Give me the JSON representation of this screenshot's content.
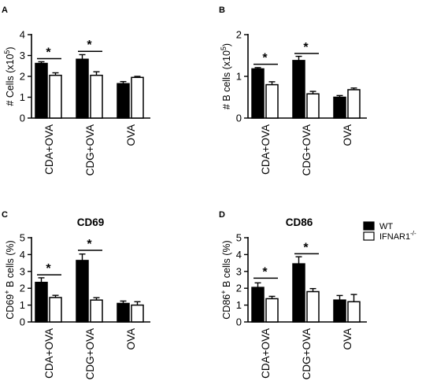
{
  "legend": {
    "wt": "WT",
    "ifnar_base": "IFNAR1",
    "ifnar_sup": "-/-"
  },
  "colors": {
    "wt": "#000000",
    "ifnar": "#ffffff",
    "stroke": "#000000"
  },
  "chart_data": [
    {
      "type": "bar",
      "letter": "A",
      "title": "",
      "ylabel_base": "# Cells (x10",
      "ylabel_sup": "5",
      "ylabel_end": ")",
      "ylim": [
        0,
        4
      ],
      "yticks": [
        "0",
        "1",
        "2",
        "3",
        "4"
      ],
      "categories": [
        "CDA+OVA",
        "CDG+OVA",
        "OVA"
      ],
      "series": [
        {
          "name": "WT",
          "values": [
            2.62,
            2.82,
            1.65
          ],
          "errors": [
            0.08,
            0.22,
            0.1
          ]
        },
        {
          "name": "IFNAR1-/-",
          "values": [
            2.05,
            2.05,
            1.95
          ],
          "errors": [
            0.12,
            0.17,
            0.05
          ]
        }
      ],
      "significance": [
        {
          "category": 0,
          "label": "*",
          "y": 2.85
        },
        {
          "category": 1,
          "label": "*",
          "y": 3.2
        }
      ]
    },
    {
      "type": "bar",
      "letter": "B",
      "title": "",
      "ylabel_base": "# B cells (x10",
      "ylabel_sup": "5",
      "ylabel_end": ")",
      "ylim": [
        0,
        2
      ],
      "yticks": [
        "0",
        "1",
        "2"
      ],
      "categories": [
        "CDA+OVA",
        "CDG+OVA",
        "OVA"
      ],
      "series": [
        {
          "name": "WT",
          "values": [
            1.18,
            1.38,
            0.5
          ],
          "errors": [
            0.03,
            0.1,
            0.04
          ]
        },
        {
          "name": "IFNAR1-/-",
          "values": [
            0.8,
            0.58,
            0.68
          ],
          "errors": [
            0.07,
            0.06,
            0.04
          ]
        }
      ],
      "significance": [
        {
          "category": 0,
          "label": "*",
          "y": 1.29
        },
        {
          "category": 1,
          "label": "*",
          "y": 1.55
        }
      ]
    },
    {
      "type": "bar",
      "letter": "C",
      "title": "CD69",
      "ylabel_base": "CD69",
      "ylabel_sup": "+",
      "ylabel_end": " B cells (%)",
      "ylim": [
        0,
        5
      ],
      "yticks": [
        "0",
        "1",
        "2",
        "3",
        "4",
        "5"
      ],
      "categories": [
        "CDA+OVA",
        "CDG+OVA",
        "OVA"
      ],
      "series": [
        {
          "name": "WT",
          "values": [
            2.35,
            3.65,
            1.1
          ],
          "errors": [
            0.27,
            0.38,
            0.14
          ]
        },
        {
          "name": "IFNAR1-/-",
          "values": [
            1.45,
            1.3,
            1.0
          ],
          "errors": [
            0.13,
            0.14,
            0.2
          ]
        }
      ],
      "significance": [
        {
          "category": 0,
          "label": "*",
          "y": 2.8
        },
        {
          "category": 1,
          "label": "*",
          "y": 4.25
        }
      ]
    },
    {
      "type": "bar",
      "letter": "D",
      "title": "CD86",
      "ylabel_base": "CD86",
      "ylabel_sup": "+",
      "ylabel_end": " B cells (%)",
      "ylim": [
        0,
        5
      ],
      "yticks": [
        "0",
        "1",
        "2",
        "3",
        "4",
        "5"
      ],
      "categories": [
        "CDA+OVA",
        "CDG+OVA",
        "OVA"
      ],
      "series": [
        {
          "name": "WT",
          "values": [
            2.05,
            3.45,
            1.3
          ],
          "errors": [
            0.27,
            0.42,
            0.27
          ]
        },
        {
          "name": "IFNAR1-/-",
          "values": [
            1.38,
            1.8,
            1.2
          ],
          "errors": [
            0.14,
            0.18,
            0.43
          ]
        }
      ],
      "significance": [
        {
          "category": 0,
          "label": "*",
          "y": 2.6
        },
        {
          "category": 1,
          "label": "*",
          "y": 4.05
        }
      ]
    }
  ]
}
